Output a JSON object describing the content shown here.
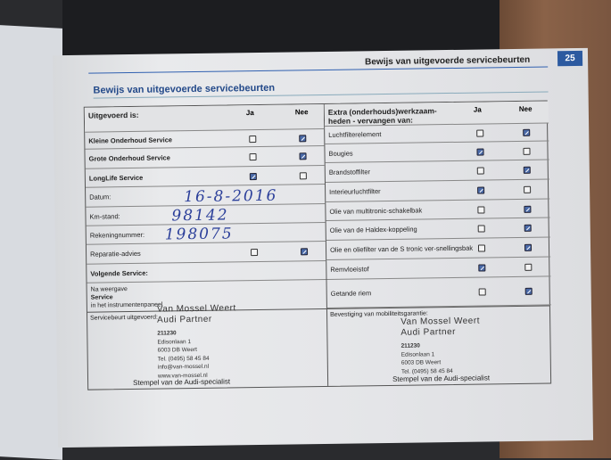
{
  "header": {
    "running_title": "Bewijs van uitgevoerde servicebeurten",
    "page_number": "25"
  },
  "section_title": "Bewijs van uitgevoerde servicebeurten",
  "left": {
    "header": "Uitgevoerd is:",
    "ja": "Ja",
    "nee": "Nee",
    "rows": [
      {
        "label": "Kleine Onderhoud Service",
        "bold": true,
        "ja": false,
        "nee": true
      },
      {
        "label": "Grote Onderhoud Service",
        "bold": true,
        "ja": false,
        "nee": true
      },
      {
        "label": "LongLife Service",
        "bold": true,
        "ja": true,
        "nee": false
      },
      {
        "label": "Datum:",
        "value": "16-8-2016"
      },
      {
        "label": "Km-stand:",
        "value": "98142"
      },
      {
        "label": "Rekeningnummer:",
        "value": "198075"
      },
      {
        "label": "Reparatie-advies",
        "ja": false,
        "nee": true
      },
      {
        "label": "Volgende Service:",
        "bold": true
      }
    ],
    "na_weergave": [
      "Na weergave",
      "Service",
      "in het instrumentenpaneel"
    ]
  },
  "right": {
    "header": "Extra (onderhouds)werkzaam-heden - vervangen van:",
    "ja": "Ja",
    "nee": "Nee",
    "rows": [
      {
        "label": "Luchtfilterelement",
        "ja": false,
        "nee": true
      },
      {
        "label": "Bougies",
        "ja": true,
        "nee": false
      },
      {
        "label": "Brandstoffilter",
        "ja": false,
        "nee": true
      },
      {
        "label": "Interieurluchtfilter",
        "ja": true,
        "nee": false
      },
      {
        "label": "Olie van multitronic-schakelbak",
        "ja": false,
        "nee": true
      },
      {
        "label": "Olie van de Haldex-koppeling",
        "ja": false,
        "nee": true
      },
      {
        "label": "Olie en oliefilter van de S tronic ver-snellingsbak",
        "ja": false,
        "nee": true
      },
      {
        "label": "Remvloeistof",
        "ja": true,
        "nee": false
      },
      {
        "label": "Getande riem",
        "ja": false,
        "nee": true
      }
    ]
  },
  "bottom": {
    "left_label": "Servicebeurt uitgevoerd:",
    "right_label": "Bevestiging van mobiliteitsgarantie:",
    "stamp": {
      "name1": "Van Mossel Weert",
      "name2": "Audi Partner",
      "code": "211230",
      "street": "Edisonlaan 1",
      "city": "6003 DB  Weert",
      "tel": "Tel. (0495) 58 45 84",
      "email": "info@van-mossel.nl",
      "web": "www.van-mossel.nl"
    },
    "stempel": "Stempel van de Audi-specialist"
  },
  "colors": {
    "accent": "#2c5aa0",
    "ink": "#2b3f9a"
  }
}
